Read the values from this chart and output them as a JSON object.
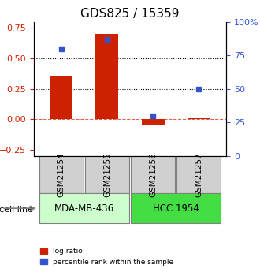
{
  "title": "GDS825 / 15359",
  "samples": [
    "GSM21254",
    "GSM21255",
    "GSM21256",
    "GSM21257"
  ],
  "log_ratio": [
    0.35,
    0.7,
    -0.05,
    0.01
  ],
  "percentile_rank": [
    80,
    87,
    30,
    50
  ],
  "left_ylim": [
    -0.3,
    0.8
  ],
  "right_ylim": [
    0,
    100
  ],
  "left_yticks": [
    -0.25,
    0,
    0.25,
    0.5,
    0.75
  ],
  "right_yticks": [
    0,
    25,
    50,
    75,
    100
  ],
  "right_yticklabels": [
    "0",
    "25",
    "50",
    "75",
    "100%"
  ],
  "bar_color": "#cc2200",
  "dot_color": "#3355cc",
  "hline_dotted": [
    0.25,
    0.5
  ],
  "hline_dashed": 0.0,
  "cell_lines": [
    {
      "label": "MDA-MB-436",
      "samples": [
        0,
        1
      ],
      "color": "#ccffcc"
    },
    {
      "label": "HCC 1954",
      "samples": [
        2,
        3
      ],
      "color": "#44dd44"
    }
  ],
  "cell_line_label": "cell line",
  "legend": [
    {
      "label": "log ratio",
      "color": "#cc2200"
    },
    {
      "label": "percentile rank within the sample",
      "color": "#3355cc"
    }
  ],
  "bar_width": 0.5,
  "title_fontsize": 11,
  "axis_label_fontsize": 8,
  "tick_fontsize": 8,
  "sample_label_fontsize": 7.5,
  "cell_line_fontsize": 8.5
}
